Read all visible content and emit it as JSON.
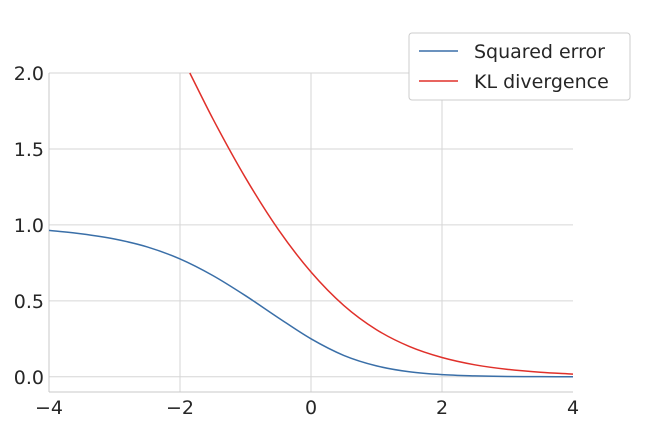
{
  "chart_data": {
    "type": "line",
    "title": "",
    "xlabel": "",
    "ylabel": "",
    "xlim": [
      -4,
      4
    ],
    "ylim": [
      -0.1,
      2.0
    ],
    "x_ticks": [
      -4,
      -2,
      0,
      2,
      4
    ],
    "y_ticks": [
      0.0,
      0.5,
      1.0,
      1.5,
      2.0
    ],
    "x_tick_labels": [
      "−4",
      "−2",
      "0",
      "2",
      "4"
    ],
    "y_tick_labels": [
      "0.0",
      "0.5",
      "1.0",
      "1.5",
      "2.0"
    ],
    "grid": true,
    "legend_position": "top-right",
    "series": [
      {
        "name": "Squared error",
        "color": "#3a6fa8",
        "x": [
          -4,
          -3.5,
          -3,
          -2.5,
          -2,
          -1.5,
          -1,
          -0.5,
          0,
          0.5,
          1,
          1.5,
          2,
          2.5,
          3,
          3.5,
          4
        ],
        "y": [
          0.964,
          0.941,
          0.907,
          0.855,
          0.776,
          0.667,
          0.534,
          0.389,
          0.25,
          0.141,
          0.072,
          0.033,
          0.014,
          0.006,
          0.002,
          0.001,
          0.0
        ]
      },
      {
        "name": "KL divergence",
        "color": "#e0302a",
        "x": [
          -1.85,
          -1.5,
          -1,
          -0.5,
          0,
          0.5,
          1,
          1.5,
          2,
          2.5,
          3,
          3.5,
          4
        ],
        "y": [
          2.0,
          1.7,
          1.31,
          0.97,
          0.69,
          0.47,
          0.31,
          0.2,
          0.127,
          0.079,
          0.049,
          0.03,
          0.018
        ]
      }
    ]
  }
}
